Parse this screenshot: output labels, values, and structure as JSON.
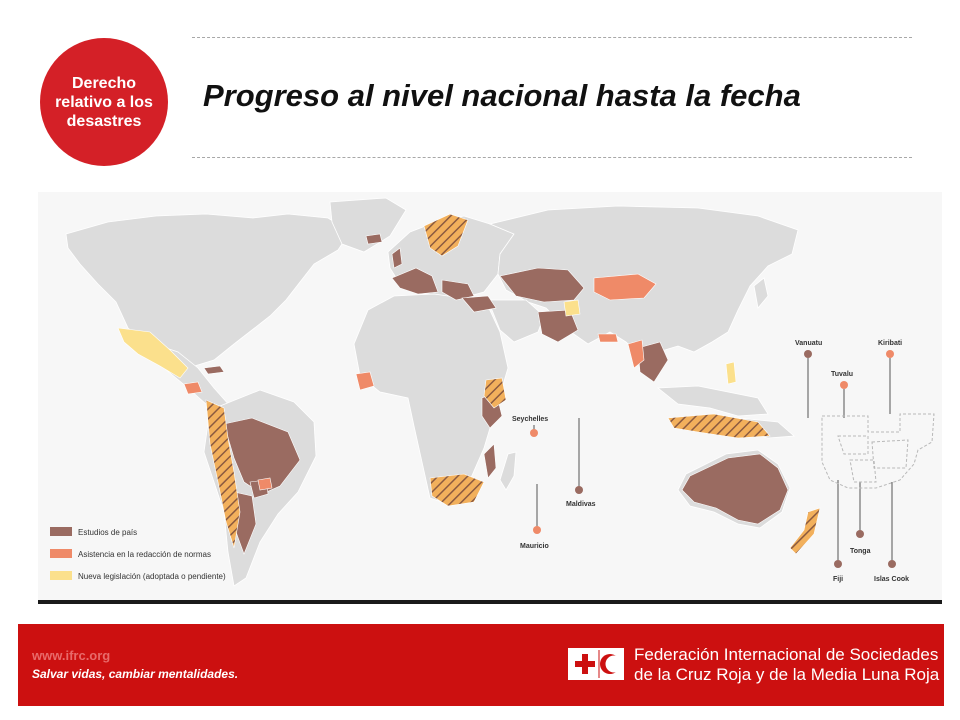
{
  "badge": {
    "text": "Derecho relativo a los desastres"
  },
  "title": "Progreso al nivel nacional hasta la fecha",
  "map": {
    "islands": [
      {
        "name": "Seychelles",
        "status": "assistance"
      },
      {
        "name": "Maldivas",
        "status": "country_study"
      },
      {
        "name": "Mauricio",
        "status": "assistance"
      },
      {
        "name": "Vanuatu",
        "status": "country_study"
      },
      {
        "name": "Tuvalu",
        "status": "assistance"
      },
      {
        "name": "Kiribati",
        "status": "assistance"
      },
      {
        "name": "Tonga",
        "status": "country_study"
      },
      {
        "name": "Fiji",
        "status": "country_study"
      },
      {
        "name": "Islas Cook",
        "status": "country_study"
      }
    ],
    "legend": [
      {
        "label": "Estudios de país",
        "color": "#9a6b61"
      },
      {
        "label": "Asistencia en la redacción de normas",
        "color": "#ef8a68"
      },
      {
        "label": "Nueva legislación (adoptada o pendiente)",
        "color": "#fbe08c"
      }
    ],
    "colors": {
      "ocean": "#f7f7f7",
      "land": "#dcdcdc",
      "country_study": "#9a6b61",
      "assistance": "#ef8a68",
      "new_law": "#fbe08c"
    }
  },
  "footer": {
    "url": "www.ifrc.org",
    "slogan": "Salvar vidas, cambiar mentalidades.",
    "org_line1": "Federación Internacional de Sociedades",
    "org_line2": "de la Cruz Roja y de la Media Luna Roja"
  }
}
